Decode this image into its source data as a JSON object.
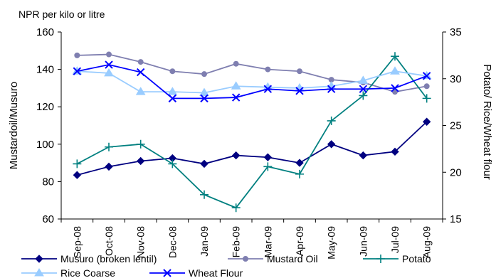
{
  "chart_data": {
    "type": "line",
    "unit_note": "NPR per kilo or litre",
    "ylabel_left": "Mustardoil/Musuro",
    "ylabel_right": "Potato/  Rice/Wheat flour",
    "ylim_left": [
      60,
      160
    ],
    "ylim_right": [
      15,
      35
    ],
    "yticks_left": [
      "60",
      "80",
      "100",
      "120",
      "140",
      "160"
    ],
    "yticks_right": [
      "15",
      "20",
      "25",
      "30",
      "35"
    ],
    "grid": false,
    "legend_position": "bottom",
    "categories": [
      "Sep-08",
      "Oct-08",
      "Nov-08",
      "Dec-08",
      "Jan-09",
      "Feb-09",
      "Mar-09",
      "Apr-09",
      "May-09",
      "Jun-09",
      "Jul-09",
      "Aug-09"
    ],
    "series": [
      {
        "name": "Musuro (broken lentil)",
        "axis": "left",
        "color": "#000080",
        "marker": "diamond",
        "values": [
          83.5,
          88,
          91,
          92.5,
          89.5,
          94,
          93,
          90,
          100,
          94,
          96,
          112
        ]
      },
      {
        "name": "Mustard Oil",
        "axis": "left",
        "color": "#7F7FB0",
        "marker": "circle",
        "values": [
          147.5,
          148,
          144,
          139,
          137.5,
          143,
          140,
          139,
          134.5,
          133,
          128,
          131
        ]
      },
      {
        "name": "Potato",
        "axis": "right",
        "color": "#008080",
        "marker": "plus",
        "values": [
          20.9,
          22.7,
          23,
          20.9,
          17.6,
          16.2,
          20.6,
          19.8,
          25.5,
          28.2,
          32.4,
          27.9
        ]
      },
      {
        "name": "Rice Coarse",
        "axis": "right",
        "color": "#99CCFF",
        "marker": "triangle",
        "values": [
          30.8,
          30.6,
          28.6,
          28.6,
          28.5,
          29.2,
          29.1,
          29,
          29.2,
          29.8,
          30.8,
          30.3
        ]
      },
      {
        "name": "Wheat Flour",
        "axis": "right",
        "color": "#0000FF",
        "marker": "x",
        "values": [
          30.8,
          31.5,
          30.7,
          27.9,
          27.9,
          28,
          28.9,
          28.7,
          28.9,
          28.9,
          29,
          30.3
        ]
      }
    ]
  }
}
